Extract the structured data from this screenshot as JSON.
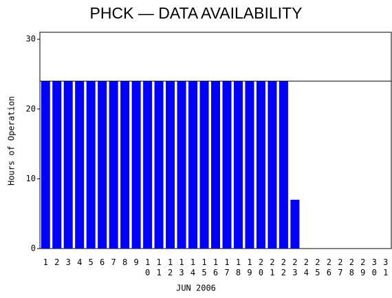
{
  "chart_data": {
    "type": "bar",
    "title": "PHCK — DATA AVAILABILITY",
    "x_label": "JUN 2006",
    "y_label": "Hours of Operation",
    "categories": [
      "1",
      "2",
      "3",
      "4",
      "5",
      "6",
      "7",
      "8",
      "9",
      "10",
      "11",
      "12",
      "13",
      "14",
      "15",
      "16",
      "17",
      "18",
      "19",
      "20",
      "21",
      "22",
      "23",
      "24",
      "25",
      "26",
      "27",
      "28",
      "29",
      "30",
      "31"
    ],
    "values": [
      24,
      24,
      24,
      24,
      24,
      24,
      24,
      24,
      24,
      24,
      24,
      24,
      24,
      24,
      24,
      24,
      24,
      24,
      24,
      24,
      24,
      24,
      7,
      0,
      0,
      0,
      0,
      0,
      0,
      0,
      0
    ],
    "color": "#0000ff",
    "ylim": [
      0,
      31
    ],
    "yticks": [
      0,
      10,
      20,
      30
    ],
    "reference_line": 24
  }
}
